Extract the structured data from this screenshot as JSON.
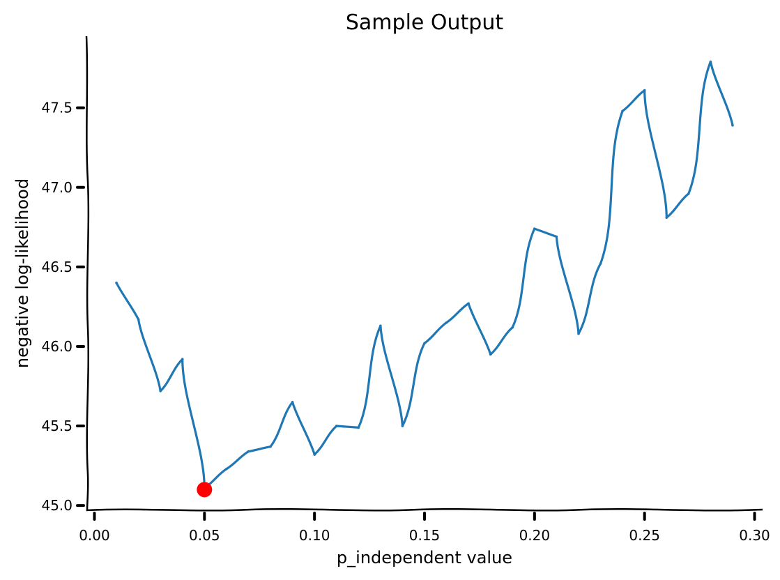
{
  "chart_data": {
    "type": "line",
    "title": "Sample Output",
    "xlabel": "p_independent value",
    "ylabel": "negative log-likelihood",
    "xlim": [
      -0.003,
      0.303
    ],
    "ylim": [
      44.97,
      47.95
    ],
    "xticks": [
      0.0,
      0.05,
      0.1,
      0.15,
      0.2,
      0.25,
      0.3
    ],
    "xtick_labels": [
      "0.00",
      "0.05",
      "0.10",
      "0.15",
      "0.20",
      "0.25",
      "0.30"
    ],
    "yticks": [
      45.0,
      45.5,
      46.0,
      46.5,
      47.0,
      47.5
    ],
    "ytick_labels": [
      "45.0",
      "45.5",
      "46.0",
      "46.5",
      "47.0",
      "47.5"
    ],
    "grid": false,
    "series": [
      {
        "color": "#1f77b4",
        "x": [
          0.01,
          0.02,
          0.03,
          0.04,
          0.05,
          0.06,
          0.07,
          0.08,
          0.09,
          0.1,
          0.11,
          0.12,
          0.13,
          0.14,
          0.15,
          0.16,
          0.17,
          0.18,
          0.19,
          0.2,
          0.21,
          0.22,
          0.23,
          0.24,
          0.25,
          0.26,
          0.27,
          0.28,
          0.29
        ],
        "y": [
          46.4,
          46.17,
          45.72,
          45.92,
          45.11,
          45.23,
          45.34,
          45.37,
          45.65,
          45.32,
          45.5,
          45.49,
          46.13,
          45.5,
          46.02,
          46.15,
          46.27,
          45.95,
          46.12,
          46.74,
          46.69,
          46.08,
          46.52,
          47.48,
          47.61,
          46.81,
          46.96,
          47.79,
          47.39
        ]
      }
    ],
    "highlight": {
      "x": 0.05,
      "y": 45.1,
      "color": "#ff0000"
    }
  }
}
